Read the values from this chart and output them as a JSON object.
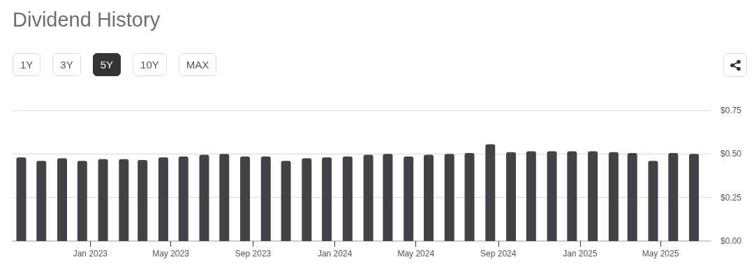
{
  "chart_data": {
    "type": "bar",
    "title": "Dividend History",
    "annotations": [
      "1Y",
      "3Y",
      "5Y",
      "10Y",
      "MAX"
    ],
    "x": [
      "2022-09-20",
      "2022-10-20",
      "2022-11-20",
      "2022-12-20",
      "2023-01-20",
      "2023-02-20",
      "2023-03-20",
      "2023-04-20",
      "2023-05-20",
      "2023-06-20",
      "2023-07-20",
      "2023-08-20",
      "2023-09-20",
      "2023-10-20",
      "2023-11-20",
      "2023-12-20",
      "2024-01-20",
      "2024-02-20",
      "2024-03-20",
      "2024-04-20",
      "2024-05-20",
      "2024-06-20",
      "2024-07-20",
      "2024-08-20",
      "2024-09-20",
      "2024-10-20",
      "2024-11-20",
      "2024-12-20",
      "2025-01-20",
      "2025-02-20",
      "2025-03-20",
      "2025-04-20",
      "2025-05-20",
      "2025-06-20"
    ],
    "values": [
      0.48,
      0.46,
      0.475,
      0.46,
      0.47,
      0.47,
      0.465,
      0.48,
      0.485,
      0.495,
      0.5,
      0.485,
      0.485,
      0.46,
      0.475,
      0.48,
      0.485,
      0.495,
      0.5,
      0.485,
      0.495,
      0.5,
      0.505,
      0.555,
      0.51,
      0.515,
      0.515,
      0.515,
      0.515,
      0.51,
      0.505,
      0.46,
      0.505,
      0.5
    ],
    "color": "#434246",
    "xlim": [
      "2022-09-07",
      "2025-07-15"
    ],
    "xticks": [
      {
        "value": "2023-01-01",
        "label": "Jan 2023"
      },
      {
        "value": "2023-05-01",
        "label": "May 2023"
      },
      {
        "value": "2023-09-01",
        "label": "Sep 2023"
      },
      {
        "value": "2024-01-01",
        "label": "Jan 2024"
      },
      {
        "value": "2024-05-01",
        "label": "May 2024"
      },
      {
        "value": "2024-09-01",
        "label": "Sep 2024"
      },
      {
        "value": "2025-01-01",
        "label": "Jan 2025"
      },
      {
        "value": "2025-05-01",
        "label": "May 2025"
      }
    ],
    "ylim": [
      0,
      0.75
    ],
    "yticks": [
      {
        "value": 0,
        "label": "$0.00"
      },
      {
        "value": 0.25,
        "label": "$0.25"
      },
      {
        "value": 0.5,
        "label": "$0.50"
      },
      {
        "value": 0.75,
        "label": "$0.75"
      }
    ],
    "grid": "y"
  }
}
